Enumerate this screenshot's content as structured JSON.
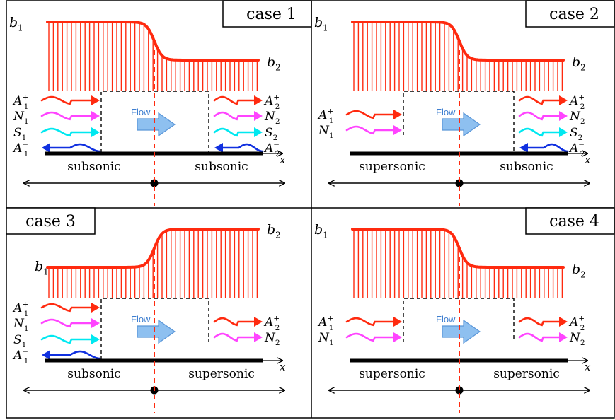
{
  "colors": {
    "field": "#ff2a0f",
    "dashed_center": "#ff2a0f",
    "wave_A": "#ff2a0f",
    "wave_N": "#ff44ff",
    "wave_S": "#00e8f0",
    "wave_Aminus": "#1030e0",
    "flow_arrow_fill": "#8ec0f0",
    "flow_arrow_stroke": "#5a96d8",
    "flow_text": "#3f7fd0"
  },
  "labels": {
    "b": "b",
    "sub1": "1",
    "sub2": "2",
    "x": "x",
    "flow": "Flow",
    "A": "A",
    "N": "N",
    "S": "S",
    "plus": "+",
    "minus": "−",
    "subsonic": "subsonic",
    "supersonic": "supersonic"
  },
  "panels": [
    {
      "case_label": "case 1",
      "left_regime": "subsonic",
      "right_regime": "subsonic",
      "field_profile": "decrease",
      "left_waves": [
        "A1+",
        "N1",
        "S1",
        "A1-"
      ],
      "right_waves": [
        "A2+",
        "N2",
        "S2",
        "A2-"
      ]
    },
    {
      "case_label": "case 2",
      "left_regime": "supersonic",
      "right_regime": "subsonic",
      "field_profile": "decrease",
      "left_waves": [
        "A1+",
        "N1"
      ],
      "right_waves": [
        "A2+",
        "N2",
        "S2",
        "A2-"
      ]
    },
    {
      "case_label": "case 3",
      "left_regime": "subsonic",
      "right_regime": "supersonic",
      "field_profile": "increase",
      "left_waves": [
        "A1+",
        "N1",
        "S1",
        "A1-"
      ],
      "right_waves": [
        "A2+",
        "N2"
      ]
    },
    {
      "case_label": "case 4",
      "left_regime": "supersonic",
      "right_regime": "supersonic",
      "field_profile": "decrease",
      "left_waves": [
        "A1+",
        "N1"
      ],
      "right_waves": [
        "A2+",
        "N2"
      ]
    }
  ]
}
